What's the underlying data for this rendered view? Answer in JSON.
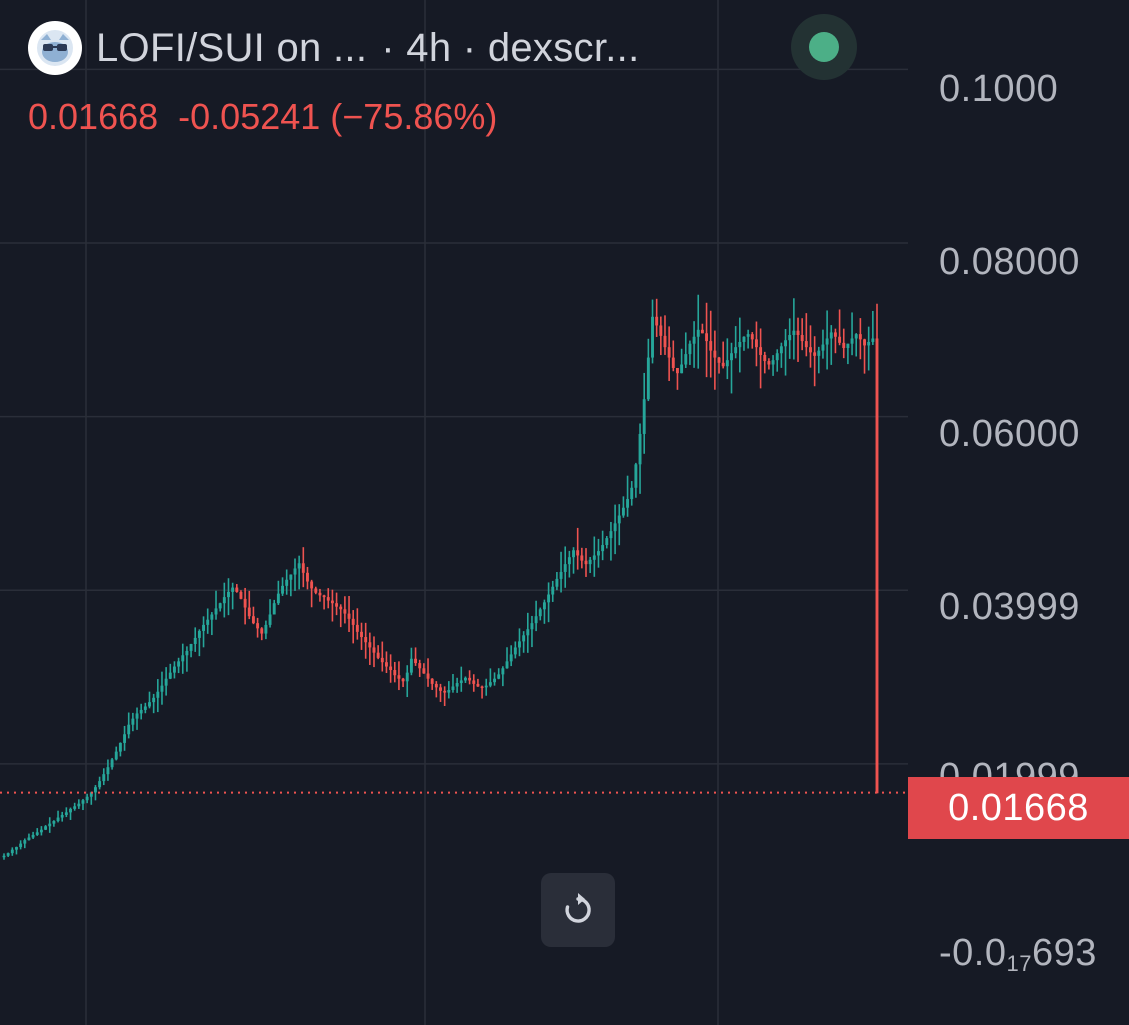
{
  "header": {
    "pair_title": "LOFI/SUI on ...",
    "interval_source": "· 4h · dexscr...",
    "status_color": "#4caf87"
  },
  "ohlc": {
    "last": "0.01668",
    "change": "-0.05241",
    "change_pct": "(−75.86%)"
  },
  "price_axis": {
    "labels": [
      "0.1000",
      "0.08000",
      "0.06000",
      "0.03999",
      "0.01999"
    ],
    "bottom_prefix": "-0.0",
    "bottom_sub": "17",
    "bottom_suffix": "693",
    "last_price_tag": "0.01668"
  },
  "controls": {
    "reset_icon": "reset-rotate-icon"
  },
  "colors": {
    "background": "#161a25",
    "up": "#26a69a",
    "down": "#ef5350",
    "grid": "#2a2e39",
    "axis_text": "#b2b5be"
  },
  "chart_data": {
    "type": "candlestick",
    "interval": "4h",
    "ylim": [
      -0.0101,
      0.108
    ],
    "y_ticks": [
      0.1,
      0.08,
      0.06,
      0.03999,
      0.01999
    ],
    "last_price": 0.01668,
    "series": [
      {
        "values": [
          0.0094,
          0.0097,
          0.0101,
          0.0104,
          0.0108,
          0.0112,
          0.0115,
          0.0118,
          0.0121,
          0.0124,
          0.0128,
          0.0131,
          0.0134,
          0.0138,
          0.0141,
          0.0144,
          0.0148,
          0.0151,
          0.0154,
          0.0158,
          0.0162,
          0.0167,
          0.0173,
          0.018,
          0.0188,
          0.0196,
          0.0205,
          0.0214,
          0.0224,
          0.0234,
          0.0245,
          0.0252,
          0.0258,
          0.0262,
          0.0266,
          0.0271,
          0.0276,
          0.0283,
          0.029,
          0.0298,
          0.0305,
          0.0312,
          0.0318,
          0.0325,
          0.033,
          0.0338,
          0.0345,
          0.0353,
          0.036,
          0.0366,
          0.0372,
          0.0379,
          0.0385,
          0.0392,
          0.0398,
          0.0403,
          0.0398,
          0.039,
          0.038,
          0.037,
          0.0362,
          0.0356,
          0.035,
          0.036,
          0.0372,
          0.0385,
          0.0396,
          0.0405,
          0.0412,
          0.0418,
          0.0425,
          0.0431,
          0.042,
          0.041,
          0.0402,
          0.0397,
          0.0394,
          0.0392,
          0.0388,
          0.0385,
          0.0381,
          0.0378,
          0.0373,
          0.0367,
          0.036,
          0.0352,
          0.0346,
          0.034,
          0.0334,
          0.0328,
          0.0322,
          0.0317,
          0.0312,
          0.0308,
          0.0302,
          0.0298,
          0.0295,
          0.0305,
          0.0321,
          0.0316,
          0.031,
          0.0304,
          0.0298,
          0.0292,
          0.0288,
          0.0284,
          0.0282,
          0.0285,
          0.0289,
          0.0293,
          0.0296,
          0.0299,
          0.0296,
          0.0292,
          0.0289,
          0.0288,
          0.029,
          0.0294,
          0.0298,
          0.0303,
          0.031,
          0.0318,
          0.0326,
          0.0334,
          0.0341,
          0.0348,
          0.0355,
          0.0362,
          0.037,
          0.0378,
          0.0386,
          0.0395,
          0.0404,
          0.0413,
          0.0421,
          0.043,
          0.0438,
          0.0446,
          0.044,
          0.0434,
          0.043,
          0.0435,
          0.044,
          0.0445,
          0.0452,
          0.046,
          0.0468,
          0.0477,
          0.0486,
          0.0495,
          0.0505,
          0.0518,
          0.0545,
          0.058,
          0.062,
          0.0668,
          0.0715,
          0.0705,
          0.0693,
          0.068,
          0.0668,
          0.0656,
          0.065,
          0.066,
          0.0672,
          0.0684,
          0.0692,
          0.07,
          0.0696,
          0.0687,
          0.0676,
          0.0668,
          0.0662,
          0.0658,
          0.0665,
          0.0673,
          0.068,
          0.0686,
          0.0692,
          0.0695,
          0.0689,
          0.068,
          0.0671,
          0.0664,
          0.066,
          0.0665,
          0.0673,
          0.0681,
          0.0688,
          0.0694,
          0.0699,
          0.0694,
          0.0687,
          0.068,
          0.0674,
          0.067,
          0.0676,
          0.0683,
          0.069,
          0.0697,
          0.0692,
          0.0685,
          0.0679,
          0.0684,
          0.069,
          0.0695,
          0.0689,
          0.0682,
          0.0686,
          0.069,
          0.0166
        ]
      }
    ]
  }
}
